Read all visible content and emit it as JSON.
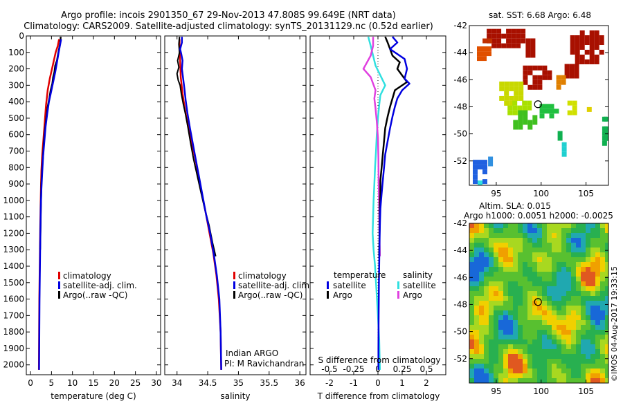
{
  "header": {
    "line1": "Argo profile: incois 2901350_67 29-Nov-2013 47.808S 99.649E (NRT data)",
    "line2": "Climatology: CARS2009. Satellite-adjusted climatology: synTS_20131129.nc (0.52d earlier)"
  },
  "colors": {
    "climatology": "#e00000",
    "satellite": "#0000e0",
    "argo": "#000000",
    "sal_satellite": "#30e0e0",
    "sal_argo": "#e040e0"
  },
  "chart_data": [
    {
      "type": "line",
      "id": "temperature",
      "xlabel": "temperature (deg C)",
      "xlim": [
        -1,
        31
      ],
      "ylim": [
        2060,
        0
      ],
      "xticks": [
        "0",
        "5",
        "10",
        "15",
        "20",
        "25",
        "30"
      ],
      "xtick_values": [
        0,
        5,
        10,
        15,
        20,
        25,
        30
      ],
      "yticks": [
        "0",
        "100",
        "200",
        "300",
        "400",
        "500",
        "600",
        "700",
        "800",
        "900",
        "1000",
        "1100",
        "1200",
        "1300",
        "1400",
        "1500",
        "1600",
        "1700",
        "1800",
        "1900",
        "2000"
      ],
      "ytick_values": [
        0,
        100,
        200,
        300,
        400,
        500,
        600,
        700,
        800,
        900,
        1000,
        1100,
        1200,
        1300,
        1400,
        1500,
        1600,
        1700,
        1800,
        1900,
        2000
      ],
      "legend": [
        "climatology",
        "satellite-adj. clim.",
        "Argo(..raw -QC)"
      ],
      "series": [
        {
          "name": "climatology",
          "color": "#e00000",
          "width": 2.5,
          "points": [
            [
              6.8,
              20
            ],
            [
              6.5,
              60
            ],
            [
              6.0,
              100
            ],
            [
              5.3,
              180
            ],
            [
              4.6,
              260
            ],
            [
              4.1,
              330
            ],
            [
              3.7,
              420
            ],
            [
              3.4,
              520
            ],
            [
              3.1,
              620
            ],
            [
              2.8,
              720
            ],
            [
              2.6,
              820
            ],
            [
              2.5,
              920
            ],
            [
              2.4,
              1050
            ],
            [
              2.3,
              1200
            ],
            [
              2.2,
              1400
            ],
            [
              2.1,
              1600
            ],
            [
              2.05,
              1800
            ],
            [
              2.0,
              2030
            ]
          ]
        },
        {
          "name": "Argo(..raw -QC)",
          "color": "#000000",
          "width": 2.5,
          "points": [
            [
              7.2,
              5
            ],
            [
              7.1,
              40
            ],
            [
              6.8,
              80
            ],
            [
              6.5,
              120
            ],
            [
              6.3,
              150
            ],
            [
              5.9,
              180
            ],
            [
              5.7,
              220
            ],
            [
              5.4,
              250
            ],
            [
              5.2,
              290
            ],
            [
              4.8,
              330
            ],
            [
              4.5,
              380
            ],
            [
              4.1,
              430
            ],
            [
              3.8,
              490
            ],
            [
              3.5,
              560
            ],
            [
              3.2,
              640
            ],
            [
              3.0,
              720
            ],
            [
              2.8,
              800
            ],
            [
              2.6,
              900
            ],
            [
              2.5,
              1000
            ],
            [
              2.4,
              1150
            ],
            [
              2.3,
              1300
            ]
          ]
        },
        {
          "name": "satellite-adj. clim.",
          "color": "#0000e0",
          "width": 2.5,
          "points": [
            [
              7.3,
              20
            ],
            [
              7.0,
              60
            ],
            [
              6.7,
              100
            ],
            [
              6.3,
              160
            ],
            [
              5.9,
              220
            ],
            [
              5.4,
              280
            ],
            [
              4.9,
              340
            ],
            [
              4.4,
              400
            ],
            [
              4.0,
              470
            ],
            [
              3.6,
              550
            ],
            [
              3.3,
              640
            ],
            [
              3.0,
              730
            ],
            [
              2.8,
              830
            ],
            [
              2.6,
              930
            ],
            [
              2.45,
              1050
            ],
            [
              2.35,
              1200
            ],
            [
              2.25,
              1400
            ],
            [
              2.15,
              1600
            ],
            [
              2.1,
              1800
            ],
            [
              2.05,
              2030
            ]
          ]
        }
      ]
    },
    {
      "type": "line",
      "id": "salinity",
      "xlabel": "salinity",
      "xlim": [
        33.8,
        36.1
      ],
      "ylim": [
        2060,
        0
      ],
      "xticks": [
        "34",
        "34.5",
        "35",
        "35.5",
        "36"
      ],
      "xtick_values": [
        34,
        34.5,
        35,
        35.5,
        36
      ],
      "legend": [
        "climatology",
        "satellite-adj. clim.",
        "Argo(..raw -QC)"
      ],
      "credit": [
        "Indian ARGO",
        "PI: M Ravichandran"
      ],
      "series": [
        {
          "name": "climatology",
          "color": "#e00000",
          "width": 2.5,
          "points": [
            [
              34.04,
              20
            ],
            [
              34.04,
              80
            ],
            [
              34.05,
              150
            ],
            [
              34.06,
              250
            ],
            [
              34.09,
              350
            ],
            [
              34.13,
              450
            ],
            [
              34.18,
              550
            ],
            [
              34.24,
              650
            ],
            [
              34.3,
              750
            ],
            [
              34.35,
              850
            ],
            [
              34.4,
              950
            ],
            [
              34.47,
              1080
            ],
            [
              34.53,
              1200
            ],
            [
              34.59,
              1320
            ],
            [
              34.64,
              1450
            ],
            [
              34.68,
              1600
            ],
            [
              34.71,
              1800
            ],
            [
              34.72,
              2030
            ]
          ]
        },
        {
          "name": "Argo(..raw -QC)",
          "color": "#000000",
          "width": 2.0,
          "points": [
            [
              34.04,
              5
            ],
            [
              34.03,
              50
            ],
            [
              34.04,
              100
            ],
            [
              34.01,
              150
            ],
            [
              34.03,
              190
            ],
            [
              34.0,
              230
            ],
            [
              34.02,
              270
            ],
            [
              34.05,
              300
            ],
            [
              34.07,
              350
            ],
            [
              34.1,
              410
            ],
            [
              34.14,
              480
            ],
            [
              34.18,
              560
            ],
            [
              34.22,
              650
            ],
            [
              34.27,
              750
            ],
            [
              34.33,
              850
            ],
            [
              34.39,
              950
            ],
            [
              34.45,
              1050
            ],
            [
              34.52,
              1150
            ],
            [
              34.58,
              1260
            ],
            [
              34.63,
              1340
            ]
          ]
        },
        {
          "name": "satellite-adj. clim.",
          "color": "#0000e0",
          "width": 2.5,
          "points": [
            [
              34.08,
              5
            ],
            [
              34.08,
              40
            ],
            [
              34.05,
              80
            ],
            [
              34.07,
              110
            ],
            [
              34.09,
              150
            ],
            [
              34.08,
              200
            ],
            [
              34.1,
              260
            ],
            [
              34.12,
              320
            ],
            [
              34.14,
              390
            ],
            [
              34.17,
              470
            ],
            [
              34.21,
              560
            ],
            [
              34.26,
              660
            ],
            [
              34.31,
              760
            ],
            [
              34.36,
              860
            ],
            [
              34.41,
              960
            ],
            [
              34.47,
              1080
            ],
            [
              34.54,
              1200
            ],
            [
              34.6,
              1330
            ],
            [
              34.65,
              1460
            ],
            [
              34.69,
              1600
            ],
            [
              34.71,
              1800
            ],
            [
              34.72,
              2030
            ]
          ]
        }
      ]
    },
    {
      "type": "line",
      "id": "difference",
      "xlabel": "T difference from climatology",
      "xlabel_top": "S difference from climatology",
      "xlim": [
        -2.8,
        2.8
      ],
      "ylim": [
        2060,
        0
      ],
      "xticks": [
        "-2",
        "-1",
        "0",
        "1",
        "2"
      ],
      "xtick_values": [
        -2,
        -1,
        0,
        1,
        2
      ],
      "sticks": [
        "-0.5",
        "-0.25",
        "0",
        "0.25",
        "0.5"
      ],
      "stick_values": [
        -2,
        -1,
        0,
        1,
        2
      ],
      "legend_heads": [
        "temperature",
        "salinity"
      ],
      "legend_t": [
        "satellite",
        "Argo"
      ],
      "legend_s": [
        "satellite",
        "Argo"
      ],
      "series": [
        {
          "name": "salinity satellite",
          "color": "#30e0e0",
          "width": 2.5,
          "points": [
            [
              -0.4,
              5
            ],
            [
              -0.3,
              60
            ],
            [
              -0.2,
              120
            ],
            [
              -0.1,
              180
            ],
            [
              0.1,
              240
            ],
            [
              0.3,
              300
            ],
            [
              0.1,
              360
            ],
            [
              0.05,
              420
            ],
            [
              0.0,
              500
            ],
            [
              -0.05,
              600
            ],
            [
              -0.08,
              700
            ],
            [
              -0.12,
              800
            ],
            [
              -0.15,
              900
            ],
            [
              -0.18,
              1000
            ],
            [
              -0.2,
              1100
            ],
            [
              -0.22,
              1200
            ],
            [
              -0.18,
              1300
            ],
            [
              -0.12,
              1400
            ],
            [
              -0.06,
              1550
            ],
            [
              0.0,
              1700
            ],
            [
              0.05,
              1850
            ],
            [
              0.08,
              2030
            ]
          ]
        },
        {
          "name": "salinity Argo",
          "color": "#e040e0",
          "width": 2.5,
          "points": [
            [
              -0.2,
              5
            ],
            [
              -0.2,
              60
            ],
            [
              -0.3,
              120
            ],
            [
              -0.6,
              200
            ],
            [
              -0.3,
              250
            ],
            [
              -0.2,
              290
            ],
            [
              -0.1,
              330
            ],
            [
              -0.15,
              380
            ],
            [
              -0.1,
              440
            ],
            [
              -0.05,
              520
            ],
            [
              0.0,
              620
            ],
            [
              0.02,
              750
            ],
            [
              0.03,
              900
            ],
            [
              0.05,
              1050
            ],
            [
              0.06,
              1200
            ],
            [
              0.08,
              1340
            ]
          ]
        },
        {
          "name": "temperature Argo",
          "color": "#000000",
          "width": 2.5,
          "points": [
            [
              0.3,
              5
            ],
            [
              0.4,
              40
            ],
            [
              0.5,
              80
            ],
            [
              0.6,
              120
            ],
            [
              0.9,
              160
            ],
            [
              0.8,
              200
            ],
            [
              1.2,
              280
            ],
            [
              0.7,
              330
            ],
            [
              0.6,
              380
            ],
            [
              0.5,
              430
            ],
            [
              0.4,
              490
            ],
            [
              0.3,
              560
            ],
            [
              0.25,
              640
            ],
            [
              0.2,
              720
            ],
            [
              0.15,
              800
            ],
            [
              0.1,
              880
            ],
            [
              0.1,
              960
            ],
            [
              0.08,
              1050
            ],
            [
              0.07,
              1150
            ],
            [
              0.06,
              1250
            ],
            [
              0.05,
              1340
            ]
          ]
        },
        {
          "name": "temperature satellite",
          "color": "#0000e0",
          "width": 2.5,
          "points": [
            [
              0.6,
              5
            ],
            [
              0.8,
              40
            ],
            [
              0.5,
              80
            ],
            [
              1.1,
              140
            ],
            [
              1.2,
              200
            ],
            [
              1.1,
              260
            ],
            [
              1.3,
              290
            ],
            [
              1.0,
              330
            ],
            [
              0.8,
              380
            ],
            [
              0.7,
              430
            ],
            [
              0.6,
              490
            ],
            [
              0.5,
              560
            ],
            [
              0.4,
              640
            ],
            [
              0.3,
              720
            ],
            [
              0.25,
              800
            ],
            [
              0.2,
              880
            ],
            [
              0.15,
              960
            ],
            [
              0.1,
              1050
            ],
            [
              0.08,
              1150
            ],
            [
              0.06,
              1300
            ],
            [
              0.04,
              1500
            ],
            [
              0.03,
              1700
            ],
            [
              0.02,
              1900
            ],
            [
              0.02,
              2030
            ]
          ]
        }
      ]
    },
    {
      "type": "heatmap",
      "id": "sst-map",
      "title": "sat. SST: 6.68 Argo: 6.48",
      "xlim": [
        92,
        107.5
      ],
      "ylim": [
        -53.8,
        -42
      ],
      "xticks": [
        "95",
        "100",
        "105"
      ],
      "xtick_values": [
        95,
        100,
        105
      ],
      "yticks": [
        "-42",
        "-44",
        "-46",
        "-48",
        "-50",
        "-52"
      ],
      "ytick_values": [
        -42,
        -44,
        -46,
        -48,
        -50,
        -52
      ],
      "marker": [
        99.65,
        -47.81
      ]
    },
    {
      "type": "heatmap",
      "id": "sla-map",
      "title": "Altim. SLA: 0.015",
      "subtitle": "Argo h1000: 0.0051 h2000: -0.0025",
      "xlim": [
        92,
        107.5
      ],
      "ylim": [
        -53.8,
        -42
      ],
      "xticks": [
        "95",
        "100",
        "105"
      ],
      "xtick_values": [
        95,
        100,
        105
      ],
      "yticks": [
        "-42",
        "-44",
        "-46",
        "-48",
        "-50",
        "-52"
      ],
      "ytick_values": [
        -42,
        -44,
        -46,
        -48,
        -50,
        -52
      ],
      "marker": [
        99.65,
        -47.81
      ],
      "side_label": "©IMOS 04-Aug-2017 19:33:15"
    }
  ]
}
